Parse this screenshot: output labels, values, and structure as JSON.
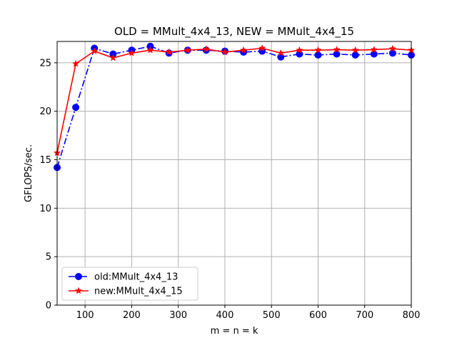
{
  "chart_data": {
    "type": "line",
    "title": "OLD = MMult_4x4_13, NEW = MMult_4x4_15",
    "xlabel": "m = n = k",
    "ylabel": "GFLOPS/sec.",
    "xlim": [
      40,
      800
    ],
    "ylim": [
      0,
      27.2
    ],
    "xticks": [
      100,
      200,
      300,
      400,
      500,
      600,
      700,
      800
    ],
    "yticks": [
      0,
      5,
      10,
      15,
      20,
      25
    ],
    "grid": true,
    "legend_position": "lower-left",
    "x": [
      40,
      80,
      120,
      160,
      200,
      240,
      280,
      320,
      360,
      400,
      440,
      480,
      520,
      560,
      600,
      640,
      680,
      720,
      760,
      800
    ],
    "series": [
      {
        "name": "old:MMult_4x4_13",
        "color": "#0000ff",
        "marker": "circle",
        "line_style": "dash-dot",
        "values": [
          14.2,
          20.4,
          26.5,
          25.9,
          26.3,
          26.7,
          26.0,
          26.3,
          26.3,
          26.2,
          26.1,
          26.2,
          25.6,
          25.9,
          25.8,
          25.9,
          25.8,
          25.9,
          26.0,
          25.8
        ]
      },
      {
        "name": "new:MMult_4x4_15",
        "color": "#ff0000",
        "marker": "star",
        "line_style": "solid",
        "values": [
          15.7,
          24.9,
          26.2,
          25.5,
          26.0,
          26.3,
          26.1,
          26.3,
          26.4,
          26.1,
          26.3,
          26.5,
          26.0,
          26.3,
          26.3,
          26.35,
          26.3,
          26.35,
          26.45,
          26.3
        ]
      }
    ]
  }
}
